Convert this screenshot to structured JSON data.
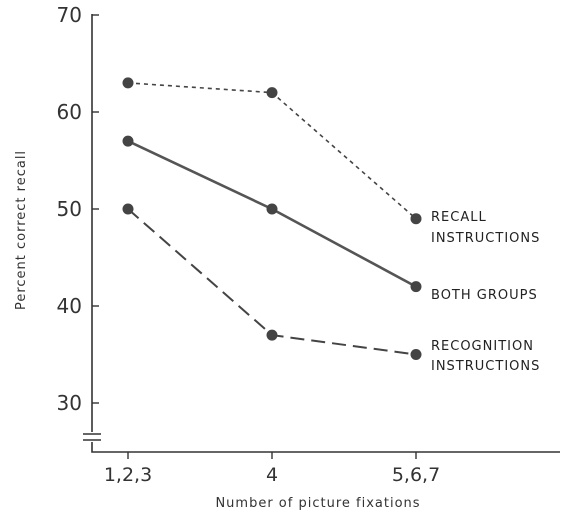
{
  "chart_data": {
    "type": "line",
    "categories": [
      "1,2,3",
      "4",
      "5,6,7"
    ],
    "ylabel": "Percent correct recall",
    "xlabel": "Number of picture fixations",
    "ylim": [
      30,
      70
    ],
    "yticks": [
      30,
      40,
      50,
      60,
      70
    ],
    "axis_break": "y",
    "grid": false,
    "series": [
      {
        "name": [
          "RECALL",
          "INSTRUCTIONS"
        ],
        "values": [
          63,
          62,
          49
        ],
        "style": "dotted",
        "color": "#444444"
      },
      {
        "name": [
          "BOTH GROUPS"
        ],
        "values": [
          57,
          50,
          42
        ],
        "style": "solid",
        "color": "#555555"
      },
      {
        "name": [
          "RECOGNITION",
          "INSTRUCTIONS"
        ],
        "values": [
          50,
          37,
          35
        ],
        "style": "dashed",
        "color": "#444444"
      }
    ]
  }
}
